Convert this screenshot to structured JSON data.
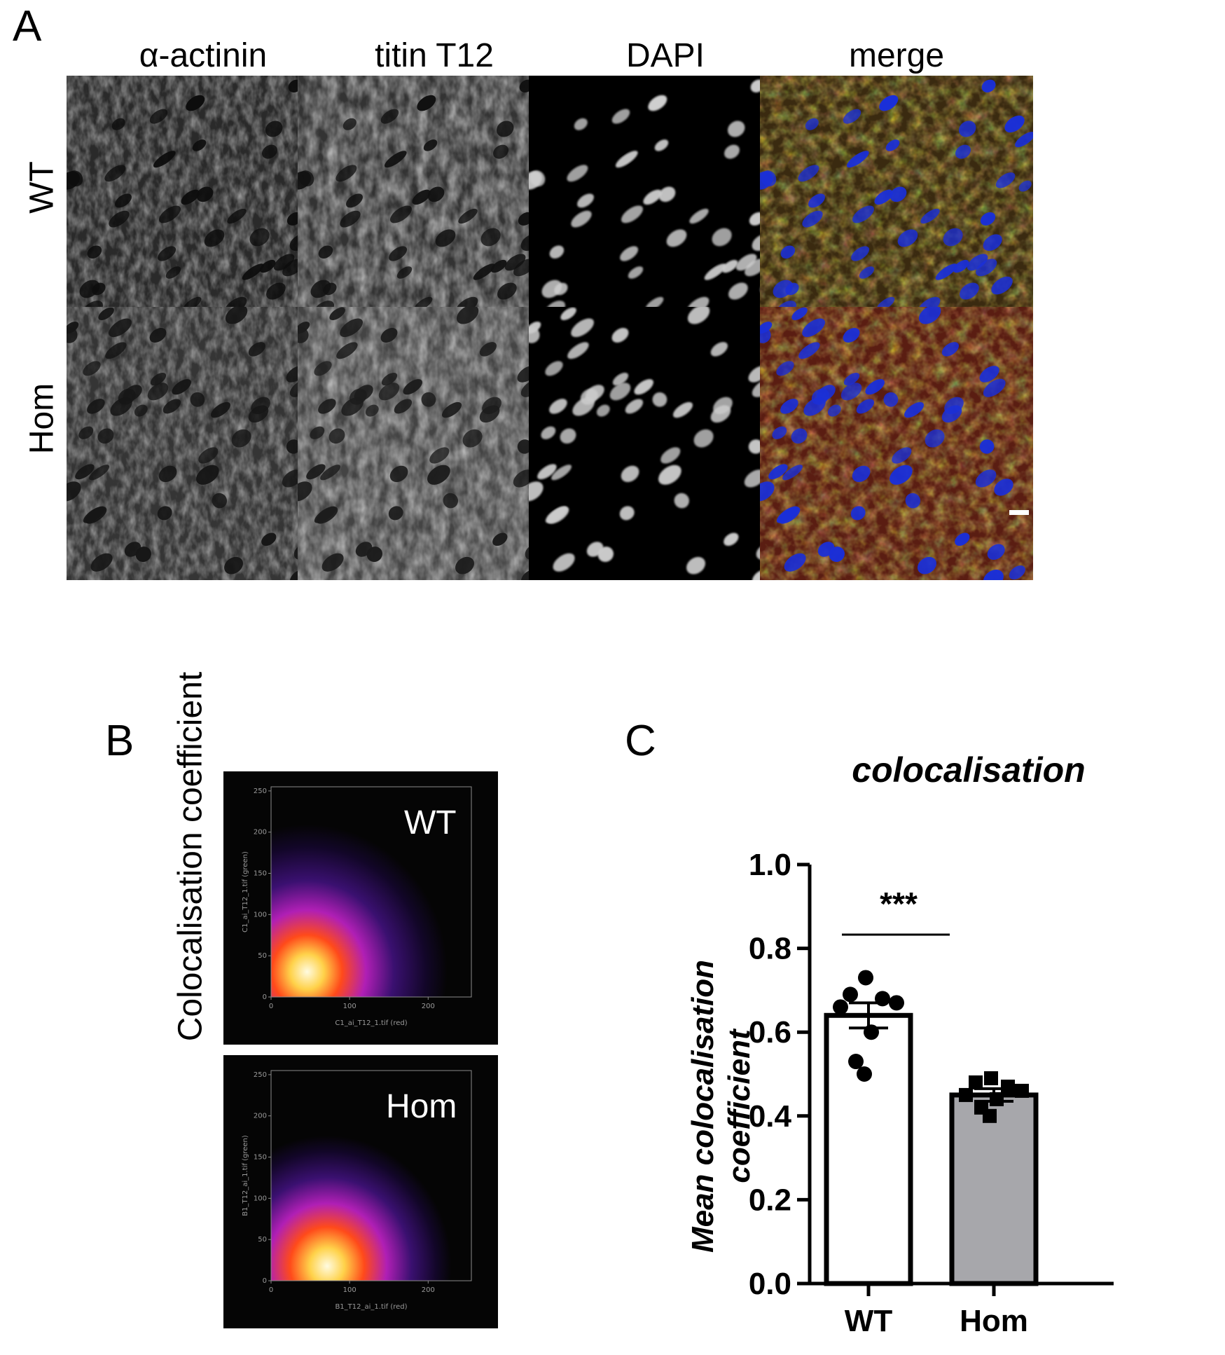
{
  "panel_a": {
    "letter": "A",
    "columns": [
      "α-actinin",
      "titin T12",
      "DAPI",
      "merge"
    ],
    "rows": [
      "WT",
      "Hom"
    ]
  },
  "panel_b": {
    "letter": "B",
    "y_title": "Colocalisation coefficient",
    "plots": [
      {
        "label": "WT",
        "x_axis_label": "C1_ai_T12_1.tif (red)",
        "y_axis_label": "C1_ai_T12_1.tif (green)",
        "x_ticks": [
          "0",
          "100",
          "200"
        ],
        "y_ticks": [
          "0",
          "50",
          "100",
          "150",
          "200",
          "250"
        ]
      },
      {
        "label": "Hom",
        "x_axis_label": "B1_T12_ai_1.tif (red)",
        "y_axis_label": "B1_T12_ai_1.tif (green)",
        "x_ticks": [
          "0",
          "100",
          "200"
        ],
        "y_ticks": [
          "0",
          "50",
          "100",
          "150",
          "200",
          "250"
        ]
      }
    ]
  },
  "panel_c": {
    "letter": "C",
    "chart_data": {
      "type": "bar",
      "title": "colocalisation",
      "ylabel": "Mean colocalisation coefficient",
      "ylabel_lines": [
        "Mean colocalisation",
        "coefficient"
      ],
      "xlabel": "",
      "categories": [
        "WT",
        "Hom"
      ],
      "values": [
        0.64,
        0.45
      ],
      "sem": [
        0.03,
        0.015
      ],
      "points": [
        [
          0.73,
          0.69,
          0.68,
          0.67,
          0.66,
          0.6,
          0.53,
          0.5
        ],
        [
          0.49,
          0.48,
          0.47,
          0.46,
          0.45,
          0.44,
          0.42,
          0.4
        ]
      ],
      "ylim": [
        0.0,
        1.0
      ],
      "yticks": [
        "0.0",
        "0.2",
        "0.4",
        "0.6",
        "0.8",
        "1.0"
      ],
      "bar_colors": [
        "#ffffff",
        "#a7a7ab"
      ],
      "significance": "***"
    }
  }
}
